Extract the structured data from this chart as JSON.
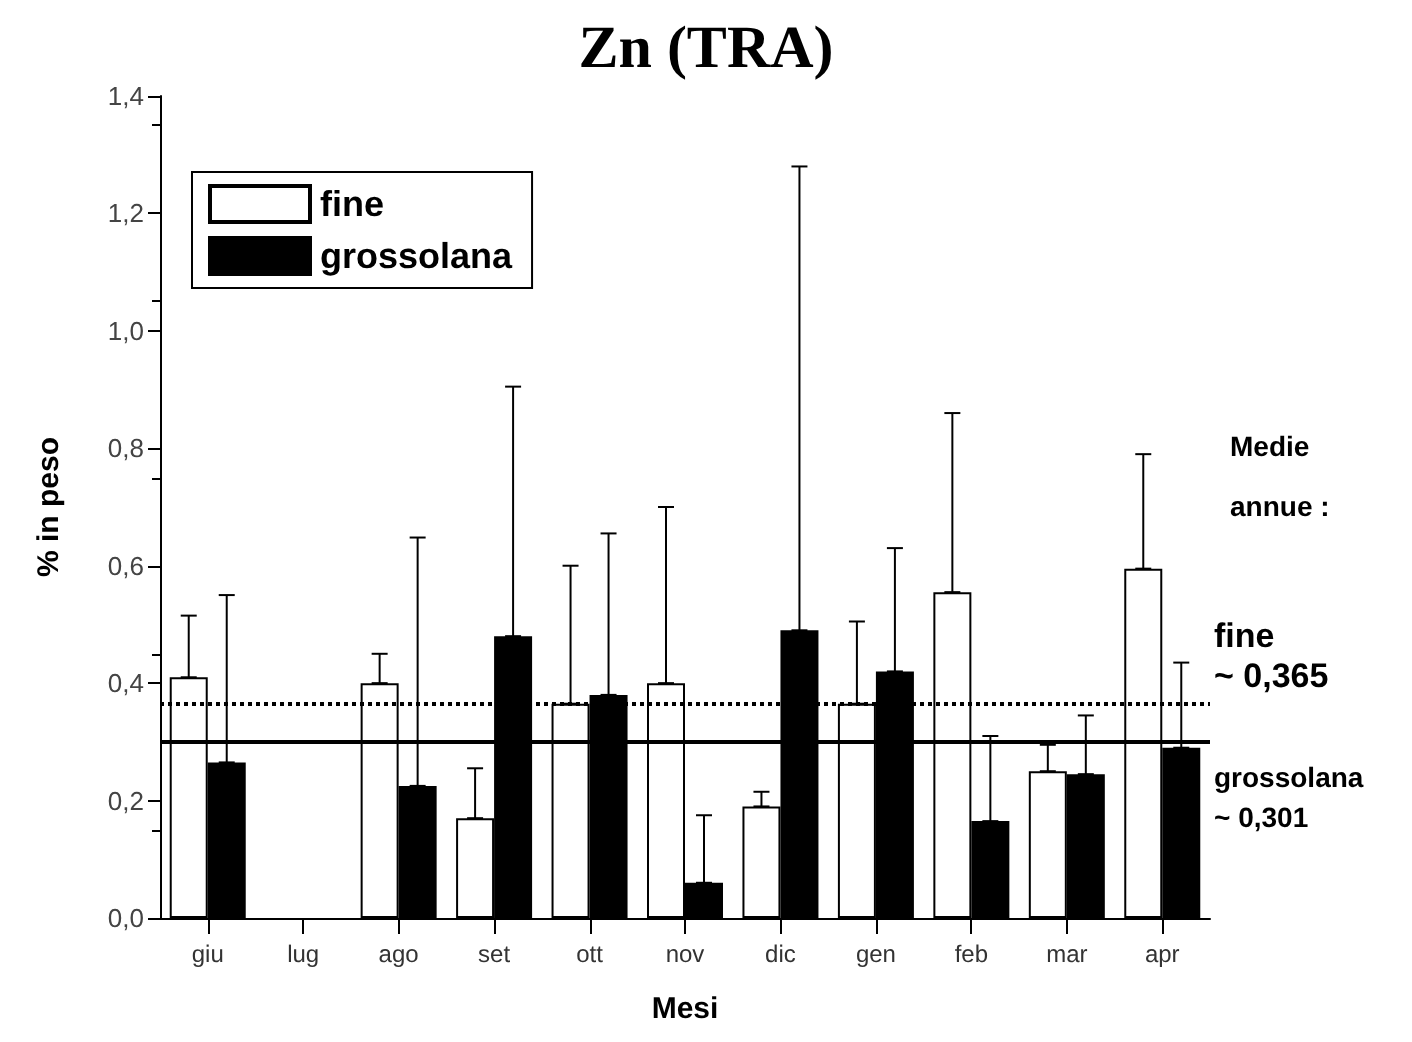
{
  "chart_data": {
    "type": "bar",
    "title": "Zn (TRA)",
    "xlabel": "Mesi",
    "ylabel": "% in peso",
    "categories": [
      "giu",
      "lug",
      "ago",
      "set",
      "ott",
      "nov",
      "dic",
      "gen",
      "feb",
      "mar",
      "apr"
    ],
    "series": [
      {
        "name": "fine",
        "color": "#ffffff",
        "values": [
          0.41,
          null,
          0.4,
          0.17,
          0.365,
          0.4,
          0.19,
          0.365,
          0.555,
          0.25,
          0.595
        ],
        "errors": [
          [
            0.41,
            0.515
          ],
          null,
          [
            0.4,
            0.45
          ],
          [
            0.17,
            0.255
          ],
          [
            0.365,
            0.6
          ],
          [
            0.4,
            0.7
          ],
          [
            0.19,
            0.215
          ],
          [
            0.365,
            0.505
          ],
          [
            0.555,
            0.86
          ],
          [
            0.25,
            0.295
          ],
          [
            0.595,
            0.79
          ]
        ]
      },
      {
        "name": "grossolana",
        "color": "#000000",
        "values": [
          0.265,
          null,
          0.225,
          0.48,
          0.38,
          0.06,
          0.49,
          0.42,
          0.165,
          0.245,
          0.29
        ],
        "errors": [
          [
            0.265,
            0.55
          ],
          null,
          [
            0.225,
            0.648
          ],
          [
            0.48,
            0.905
          ],
          [
            0.38,
            0.655
          ],
          [
            0.06,
            0.175
          ],
          [
            0.49,
            1.28
          ],
          [
            0.42,
            0.63
          ],
          [
            0.165,
            0.31
          ],
          [
            0.245,
            0.345
          ],
          [
            0.29,
            0.435
          ]
        ]
      }
    ],
    "ylim": [
      0,
      1.4
    ],
    "yticks": [
      {
        "value": 0,
        "label": "0,0"
      },
      {
        "value": 0.2,
        "label": "0,2"
      },
      {
        "value": 0.4,
        "label": "0,4"
      },
      {
        "value": 0.6,
        "label": "0,6"
      },
      {
        "value": 0.8,
        "label": "0,8"
      },
      {
        "value": 1.0,
        "label": "1,0"
      },
      {
        "value": 1.2,
        "label": "1,2"
      },
      {
        "value": 1.4,
        "label": "1,4"
      }
    ],
    "ref_lines": [
      {
        "axis": "y",
        "value": 0.365,
        "label": "fine ~ 0,365",
        "color": "#000000",
        "line_style": "dotted"
      },
      {
        "axis": "y",
        "value": 0.301,
        "label": "grossolana ~ 0,301",
        "color": "#000000",
        "line_style": "solid"
      }
    ],
    "annotations": [
      "Medie annue :"
    ],
    "grid": false,
    "legend": "top left"
  }
}
